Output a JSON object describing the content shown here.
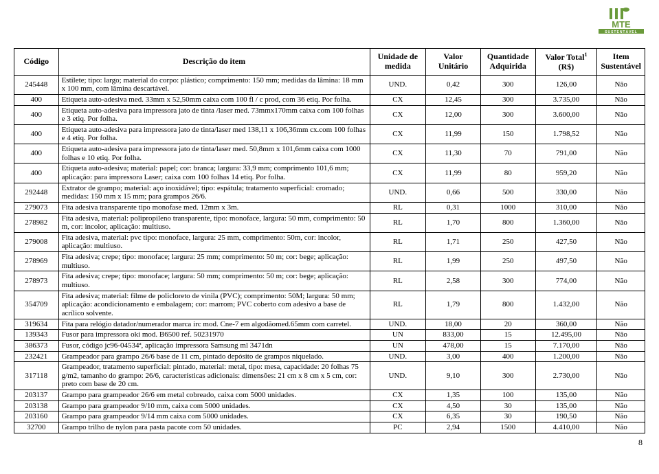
{
  "logo": {
    "text_top": "MTE",
    "text_bottom": "SUSTENTÁVEL",
    "green": "#6a9a3a",
    "dark": "#3a5a1a"
  },
  "headers": {
    "codigo": "Código",
    "descricao": "Descrição do item",
    "unidade": "Unidade de medida",
    "valor_unit": "Valor Unitário",
    "qtd": "Quantidade Adquirida",
    "valor_total_pre": "Valor Total",
    "valor_total_sup": "1",
    "valor_total_post": " (R$)",
    "item_sust": "Item Sustentável"
  },
  "rows": [
    {
      "codigo": "245448",
      "desc": "Estilete; tipo: largo; material do corpo: plástico; comprimento: 150 mm; medidas da lâmina: 18 mm x 100 mm, com lâmina descartável.",
      "un": "UND.",
      "vu": "0,42",
      "qtd": "300",
      "vt": "126,00",
      "sust": "Não"
    },
    {
      "codigo": "400",
      "desc": "Etiqueta auto-adesiva med. 33mm x 52,50mm caixa com 100 fl / c prod, com 36 etiq. Por folha.",
      "un": "CX",
      "vu": "12,45",
      "qtd": "300",
      "vt": "3.735,00",
      "sust": "Não"
    },
    {
      "codigo": "400",
      "desc": "Etiqueta auto-adesiva para impressora jato de tinta /laser med. 73mmx170mm caixa com 100 folhas e 3 etiq. Por folha.",
      "un": "CX",
      "vu": "12,00",
      "qtd": "300",
      "vt": "3.600,00",
      "sust": "Não"
    },
    {
      "codigo": "400",
      "desc": "Etiqueta auto-adesiva para impressora jato de tinta/laser med 138,11 x 106,36mm cx.com 100 folhas e 4 etiq. Por folha.",
      "un": "CX",
      "vu": "11,99",
      "qtd": "150",
      "vt": "1.798,52",
      "sust": "Não"
    },
    {
      "codigo": "400",
      "desc": "Etiqueta auto-adesiva para impressora jato de tinta/laser med. 50,8mm x 101,6mm caixa com 1000 folhas e 10 etiq. Por folha.",
      "un": "CX",
      "vu": "11,30",
      "qtd": "70",
      "vt": "791,00",
      "sust": "Não"
    },
    {
      "codigo": "400",
      "desc": "Etiqueta auto-adesiva; material: papel; cor: branca; largura: 33,9 mm; comprimento 101,6 mm; aplicação: para impressora Laser; caixa com 100 folhas 14 etiq. Por folha.",
      "un": "CX",
      "vu": "11,99",
      "qtd": "80",
      "vt": "959,20",
      "sust": "Não"
    },
    {
      "codigo": "292448",
      "desc": "Extrator de grampo; material: aço inoxidável; tipo: espátula; tratamento superficial: cromado; medidas: 150 mm x 15 mm; para grampos 26/6.",
      "un": "UND.",
      "vu": "0,66",
      "qtd": "500",
      "vt": "330,00",
      "sust": "Não"
    },
    {
      "codigo": "279073",
      "desc": "Fita adesiva transparente tipo monofase med. 12mm x 3m.",
      "un": "RL",
      "vu": "0,31",
      "qtd": "1000",
      "vt": "310,00",
      "sust": "Não"
    },
    {
      "codigo": "278982",
      "desc": "Fita adesiva, material: polipropileno transparente, tipo: monoface, largura: 50 mm, comprimento: 50 m, cor: incolor, aplicação:  multiuso.",
      "un": "RL",
      "vu": "1,70",
      "qtd": "800",
      "vt": "1.360,00",
      "sust": "Não"
    },
    {
      "codigo": "279008",
      "desc": "Fita adesiva, material: pvc tipo: monoface, largura: 25 mm, comprimento: 50m, cor: incolor, aplicação: multiuso.",
      "un": "RL",
      "vu": "1,71",
      "qtd": "250",
      "vt": "427,50",
      "sust": "Não"
    },
    {
      "codigo": "278969",
      "desc": "Fita adesiva; crepe; tipo: monoface; largura: 25 mm; comprimento: 50 m; cor: bege; aplicação: multiuso.",
      "un": "RL",
      "vu": "1,99",
      "qtd": "250",
      "vt": "497,50",
      "sust": "Não"
    },
    {
      "codigo": "278973",
      "desc": "Fita adesiva; crepe; tipo: monoface; largura: 50 mm; comprimento: 50 m; cor: bege; aplicação: multiuso.",
      "un": "RL",
      "vu": "2,58",
      "qtd": "300",
      "vt": "774,00",
      "sust": "Não"
    },
    {
      "codigo": "354709",
      "desc": "Fita adesiva; material: filme de policloreto de vinila (PVC); comprimento: 50M; largura: 50 mm; aplicação: acondicionamento e embalagem; cor: marrom; PVC coberto com adesivo a base de acrílico solvente.",
      "un": "RL",
      "vu": "1,79",
      "qtd": "800",
      "vt": "1.432,00",
      "sust": "Não"
    },
    {
      "codigo": "319634",
      "desc": "Fita para relógio datador/numerador marca irc mod. Cne-7 em algodãomed.65mm com carretel.",
      "un": "UND.",
      "vu": "18,00",
      "qtd": "20",
      "vt": "360,00",
      "sust": "Não"
    },
    {
      "codigo": "139343",
      "desc": "Fusor para impressora oki mod. B6500 ref. 50231970",
      "un": "UN",
      "vu": "833,00",
      "qtd": "15",
      "vt": "12.495,00",
      "sust": "Não"
    },
    {
      "codigo": "386373",
      "desc": "Fusor, código jc96-04534ª, aplicação impressora Samsung ml 3471dn",
      "un": "UN",
      "vu": "478,00",
      "qtd": "15",
      "vt": "7.170,00",
      "sust": "Não"
    },
    {
      "codigo": "232421",
      "desc": "Grampeador para grampo 26/6 base de 11 cm, pintado depósito de grampos niquelado.",
      "un": "UND.",
      "vu": "3,00",
      "qtd": "400",
      "vt": "1.200,00",
      "sust": "Não"
    },
    {
      "codigo": "317118",
      "desc": "Grampeador, tratamento superficial: pintado, material: metal, tipo: mesa, capacidade: 20 folhas 75 g/m2, tamanho do grampo: 26/6, características adicionais: dimensões: 21 cm x 8 cm x 5 cm, cor: preto com base de 20 cm.",
      "un": "UND.",
      "vu": "9,10",
      "qtd": "300",
      "vt": "2.730,00",
      "sust": "Não"
    },
    {
      "codigo": "203137",
      "desc": "Grampo para grampeador 26/6 em metal cobreado, caixa com 5000 unidades.",
      "un": "CX",
      "vu": "1,35",
      "qtd": "100",
      "vt": "135,00",
      "sust": "Não"
    },
    {
      "codigo": "203138",
      "desc": "Grampo para grampeador 9/10 mm, caixa com 5000 unidades.",
      "un": "CX",
      "vu": "4,50",
      "qtd": "30",
      "vt": "135,00",
      "sust": "Não"
    },
    {
      "codigo": "203160",
      "desc": "Grampo para grampeador 9/14 mm caixa com 5000 unidades.",
      "un": "CX",
      "vu": "6,35",
      "qtd": "30",
      "vt": "190,50",
      "sust": "Não"
    },
    {
      "codigo": "32700",
      "desc": "Grampo trilho de nylon para pasta pacote com 50 unidades.",
      "un": "PC",
      "vu": "2,94",
      "qtd": "1500",
      "vt": "4.410,00",
      "sust": "Não"
    }
  ],
  "page_number": "8"
}
